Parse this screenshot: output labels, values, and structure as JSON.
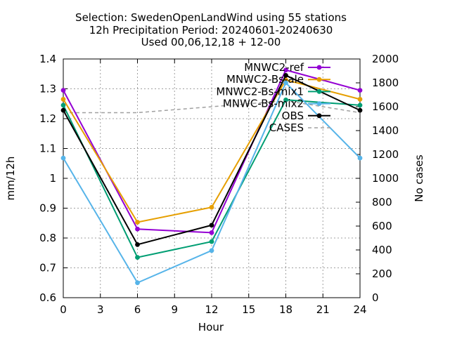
{
  "chart_data": {
    "type": "line",
    "title_lines": [
      "Selection: SwedenOpenLandWind using    55 stations",
      "12h Precipitation   Period: 20240601-20240630",
      "Used 00,06,12,18 + 12-00"
    ],
    "xlabel": "Hour",
    "ylabel": "mm/12h",
    "y2label": "No cases",
    "xlim": [
      0,
      24
    ],
    "ylim": [
      0.6,
      1.4
    ],
    "y2lim": [
      0,
      2000
    ],
    "xticks": [
      "0",
      "3",
      "6",
      "9",
      "12",
      "15",
      "18",
      "21",
      "24"
    ],
    "yticks": [
      "0.6",
      "0.7",
      "0.8",
      "0.9",
      "1",
      "1.1",
      "1.2",
      "1.3",
      "1.4"
    ],
    "y2ticks": [
      "0",
      "200",
      "400",
      "600",
      "800",
      "1000",
      "1200",
      "1400",
      "1600",
      "1800",
      "2000"
    ],
    "grid": true,
    "legend_position": "top-right",
    "x": [
      0,
      6,
      12,
      18,
      24
    ],
    "series": [
      {
        "name": "MNWC2-ref",
        "color": "#9400d3",
        "axis": "y",
        "values": [
          1.295,
          0.83,
          0.818,
          1.363,
          1.295
        ]
      },
      {
        "name": "MNWC2-Bs-ale",
        "color": "#e69f00",
        "axis": "y",
        "values": [
          1.265,
          0.853,
          0.903,
          1.33,
          1.265
        ]
      },
      {
        "name": "MNWC2-Bs-mix1",
        "color": "#009e73",
        "axis": "y",
        "values": [
          1.245,
          0.735,
          0.788,
          1.263,
          1.245
        ]
      },
      {
        "name": "MNWC-Bs-mix2",
        "color": "#56b4e9",
        "axis": "y",
        "values": [
          1.068,
          0.65,
          0.758,
          1.32,
          1.068
        ]
      },
      {
        "name": "OBS",
        "color": "#000000",
        "axis": "y",
        "values": [
          1.228,
          0.778,
          0.843,
          1.345,
          1.228
        ]
      },
      {
        "name": "CASES",
        "color": "#a0a0a0",
        "axis": "y2",
        "dashed": true,
        "values": [
          1550,
          1550,
          1600,
          1650,
          1550
        ]
      }
    ]
  }
}
